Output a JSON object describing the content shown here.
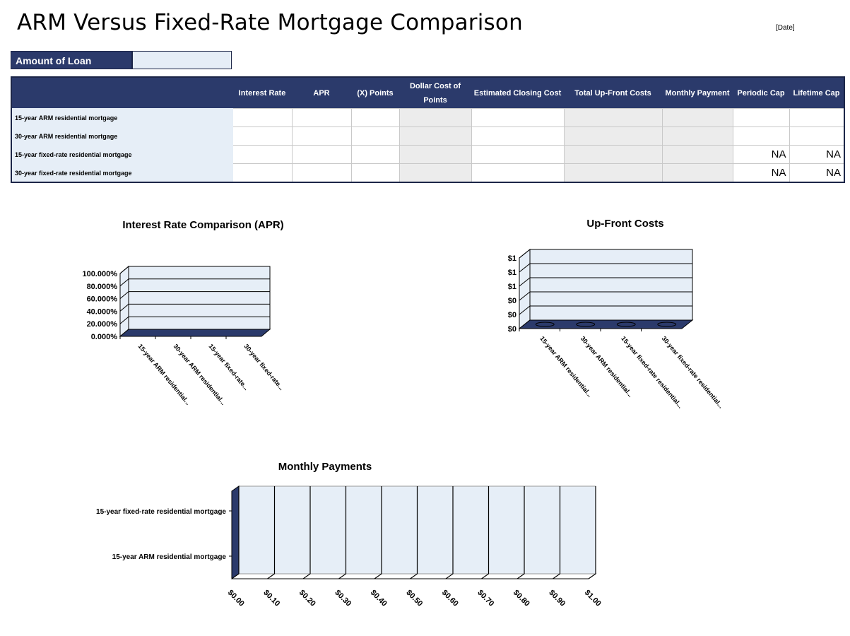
{
  "title": "ARM Versus Fixed-Rate Mortgage Comparison",
  "date_label": "[Date]",
  "loan": {
    "label": "Amount of Loan",
    "value": ""
  },
  "table": {
    "headers": [
      "",
      "Interest Rate",
      "APR",
      "(X) Points",
      "Dollar Cost of Points",
      "Estimated Closing Cost",
      "Total Up-Front Costs",
      "Monthly Payment",
      "Periodic Cap",
      "Lifetime Cap"
    ],
    "rows": [
      {
        "label": "15-year ARM residential mortgage",
        "cells": [
          "",
          "",
          "",
          "",
          "",
          "",
          "",
          "",
          ""
        ]
      },
      {
        "label": "30-year ARM residential mortgage",
        "cells": [
          "",
          "",
          "",
          "",
          "",
          "",
          "",
          "",
          ""
        ]
      },
      {
        "label": "15-year fixed-rate residential mortgage",
        "cells": [
          "",
          "",
          "",
          "",
          "",
          "",
          "",
          "NA",
          "NA"
        ]
      },
      {
        "label": "30-year fixed-rate residential mortgage",
        "cells": [
          "",
          "",
          "",
          "",
          "",
          "",
          "",
          "NA",
          "NA"
        ]
      }
    ]
  },
  "chart_data": [
    {
      "type": "bar",
      "title": "Interest Rate Comparison (APR)",
      "categories": [
        "15-year ARM residential...",
        "30-year ARM residential...",
        "15-year fixed-rate...",
        "30-year fixed-rate..."
      ],
      "values": [
        0,
        0,
        0,
        0
      ],
      "y_ticks": [
        "0.000%",
        "20.000%",
        "40.000%",
        "60.000%",
        "80.000%",
        "100.000%"
      ],
      "ylim": [
        0,
        1
      ],
      "grid": true
    },
    {
      "type": "bar",
      "title": "Up-Front Costs",
      "categories": [
        "15-year ARM residential...",
        "30-year ARM residential...",
        "15-year fixed-rate residential...",
        "30-year fixed-rate residential..."
      ],
      "values": [
        0,
        0,
        0,
        0
      ],
      "y_ticks": [
        "$0",
        "$0",
        "$0",
        "$1",
        "$1",
        "$1"
      ],
      "grid": true
    },
    {
      "type": "bar",
      "orientation": "horizontal",
      "title": "Monthly Payments",
      "categories": [
        "15-year ARM residential mortgage",
        "15-year fixed-rate residential mortgage"
      ],
      "values": [
        0,
        0
      ],
      "x_ticks": [
        "$0.00",
        "$0.10",
        "$0.20",
        "$0.30",
        "$0.40",
        "$0.50",
        "$0.60",
        "$0.70",
        "$0.80",
        "$0.90",
        "$1.00"
      ],
      "xlim": [
        0,
        1
      ],
      "grid": true
    }
  ],
  "colors": {
    "header": "#2b3a6b",
    "label_bg": "#e6eef7",
    "plot_bg": "#e6eef7",
    "floor": "#2b3a6b",
    "gray_cell": "#ececec"
  }
}
